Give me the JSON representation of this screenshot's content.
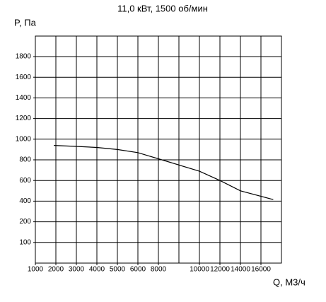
{
  "chart_data": {
    "type": "line",
    "title": "11,0 кВт, 1500 об/мин",
    "y_label": "P, Па",
    "x_label": "Q, M3/ч",
    "x": [
      1900,
      3000,
      4000,
      5000,
      6000,
      7000,
      8000,
      10000,
      12000,
      14000,
      17200
    ],
    "series": [
      {
        "name": "P",
        "color": "#000000",
        "values": [
          940,
          930,
          920,
          900,
          870,
          840,
          810,
          690,
          600,
          500,
          415
        ]
      }
    ],
    "xticks": [
      1000,
      2000,
      3000,
      4000,
      5000,
      6000,
      8000,
      10000,
      12000,
      14000,
      16000
    ],
    "yticks": [
      100,
      200,
      400,
      600,
      800,
      1000,
      1200,
      1400,
      1600,
      1800
    ],
    "grid": true
  }
}
